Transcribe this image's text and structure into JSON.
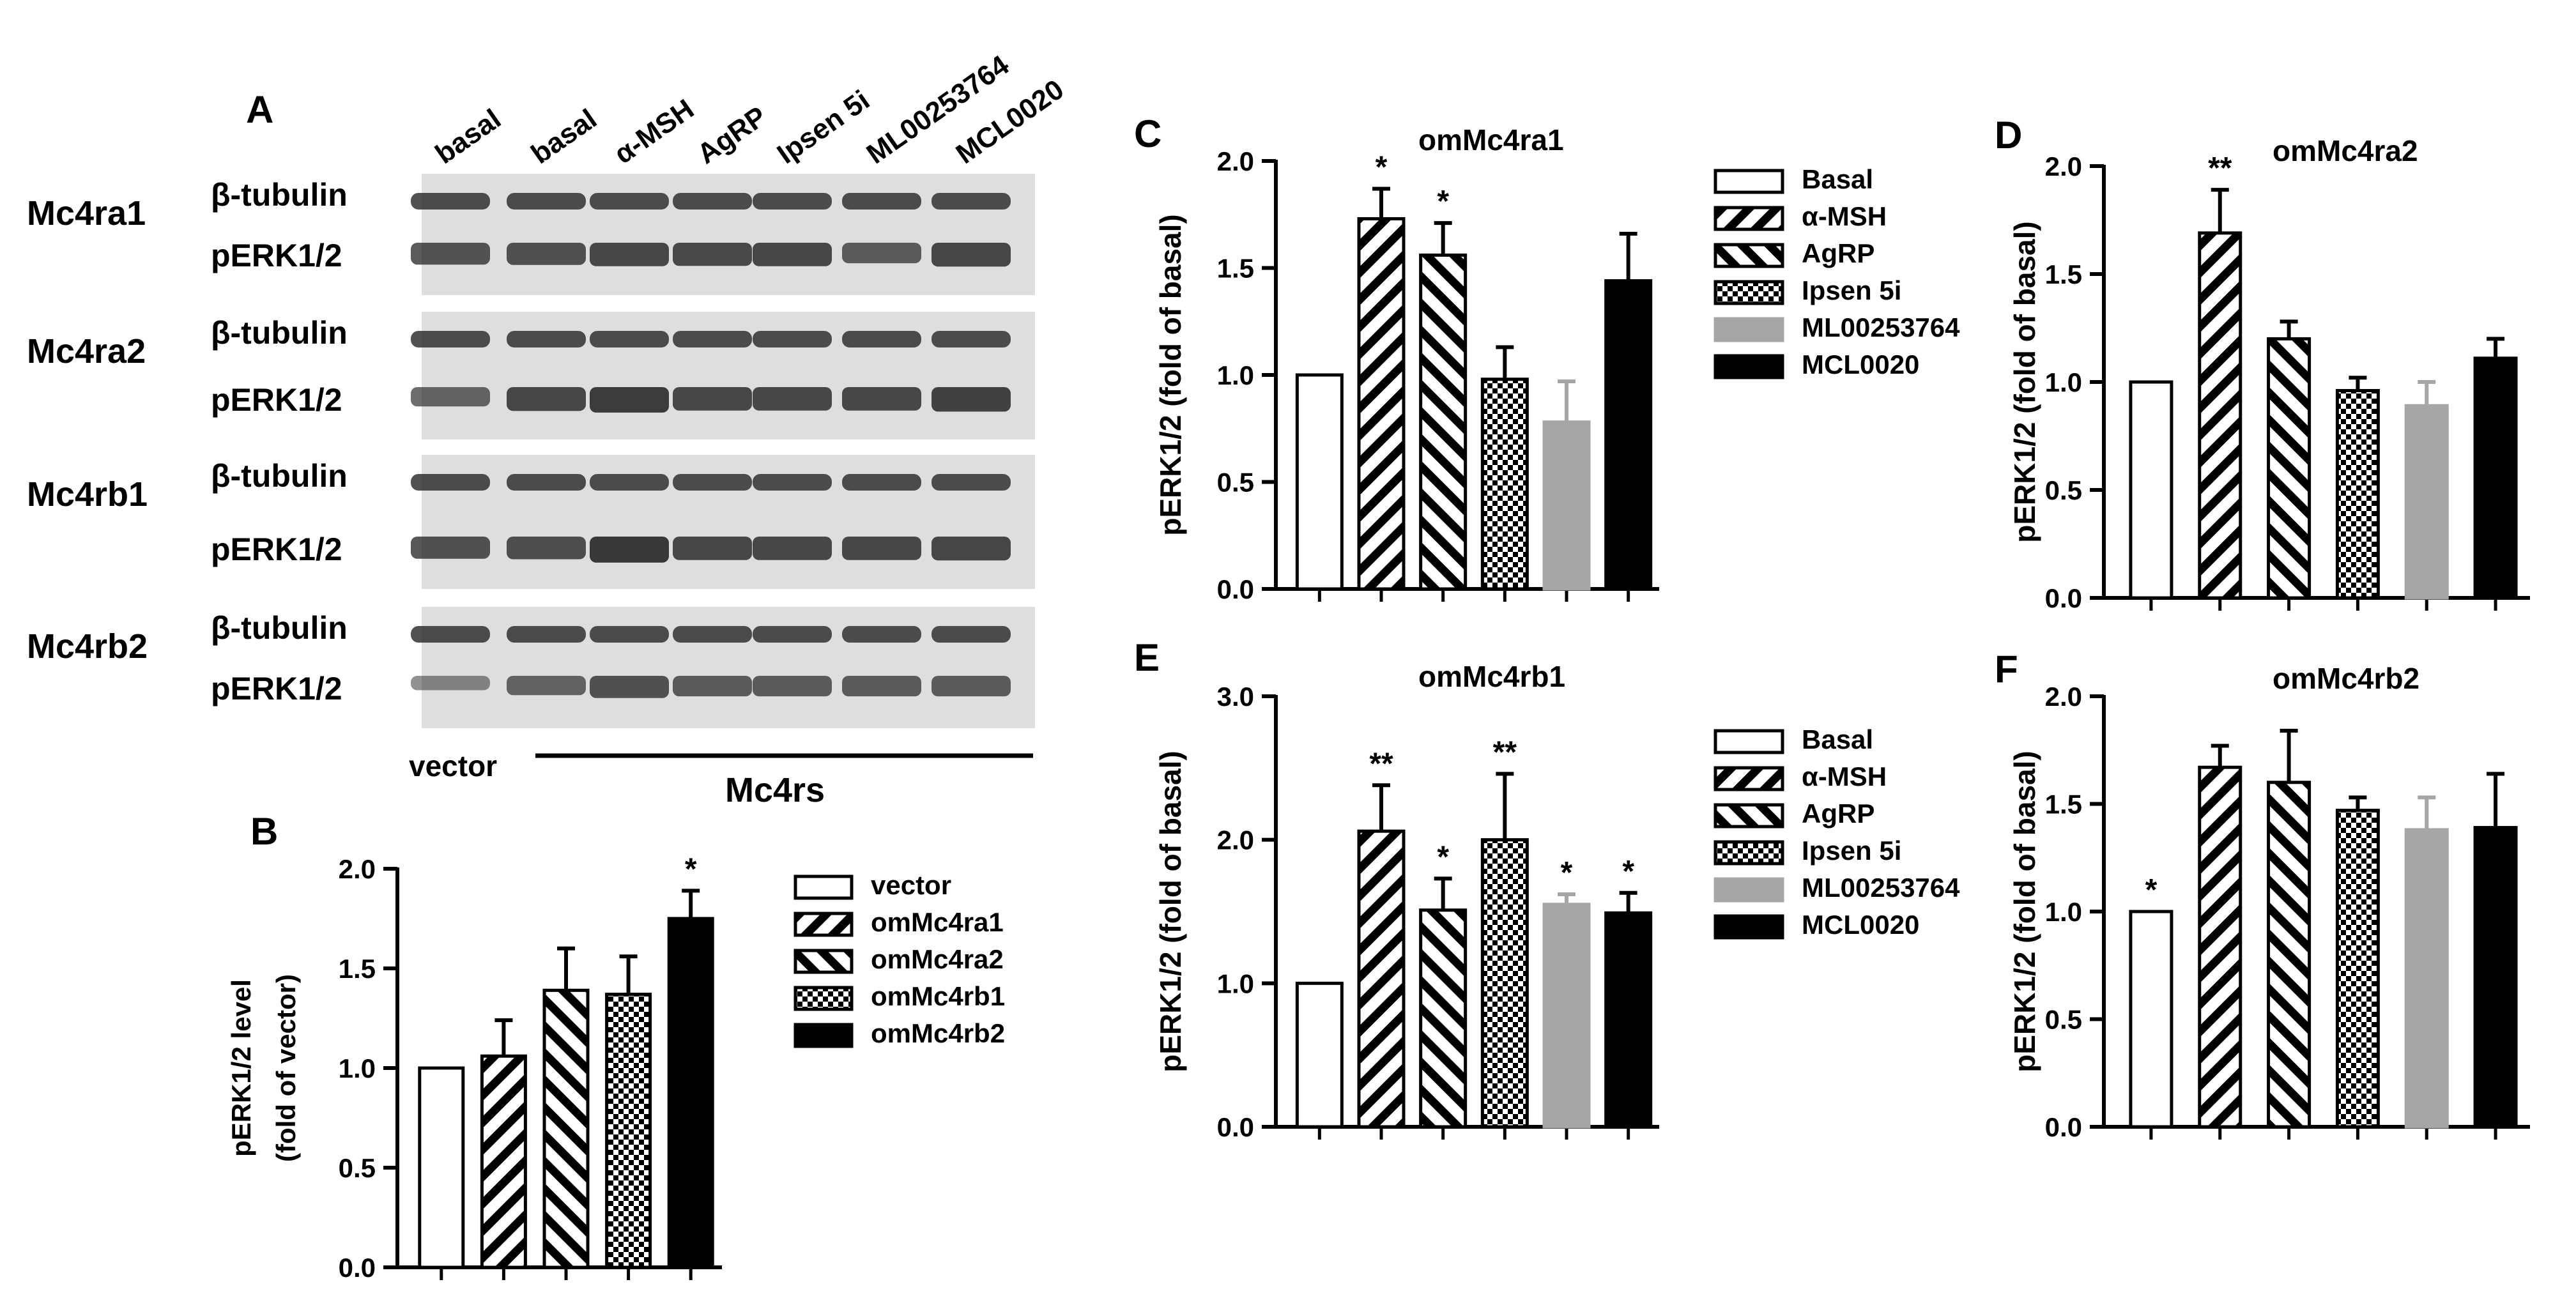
{
  "blot": {
    "panel_letter": "A",
    "lane_labels": [
      "basal",
      "basal",
      "α-MSH",
      "AgRP",
      "Ipsen 5i",
      "ML00253764",
      "MCL0020"
    ],
    "groups": [
      {
        "name": "Mc4ra1",
        "top_label": "β-tubulin",
        "bottom_label": "pERK1/2",
        "pERK_intensity": [
          0.7,
          0.72,
          0.8,
          0.78,
          0.8,
          0.62,
          0.82
        ]
      },
      {
        "name": "Mc4ra2",
        "top_label": "β-tubulin",
        "bottom_label": "pERK1/2",
        "pERK_intensity": [
          0.55,
          0.82,
          0.92,
          0.8,
          0.8,
          0.8,
          0.86
        ]
      },
      {
        "name": "Mc4rb1",
        "top_label": "β-tubulin",
        "bottom_label": "pERK1/2",
        "pERK_intensity": [
          0.72,
          0.75,
          0.95,
          0.8,
          0.8,
          0.8,
          0.82
        ]
      },
      {
        "name": "Mc4rb2",
        "top_label": "β-tubulin",
        "bottom_label": "pERK1/2",
        "pERK_intensity": [
          0.25,
          0.55,
          0.72,
          0.62,
          0.62,
          0.62,
          0.62
        ]
      }
    ],
    "vector_label": "vector",
    "mc4rs_label": "Mc4rs"
  },
  "chart_data": [
    {
      "panel": "B",
      "type": "bar",
      "title": "",
      "ylabel_lines": [
        "pERK1/2 level",
        "(fold of vector)"
      ],
      "ylim": [
        0,
        2.0
      ],
      "yticks": [
        "0.0",
        "0.5",
        "1.0",
        "1.5",
        "2.0"
      ],
      "categories": [
        "vector",
        "omMc4ra1",
        "omMc4ra2",
        "omMc4rb1",
        "omMc4rb2"
      ],
      "values": [
        1.0,
        1.06,
        1.39,
        1.37,
        1.75
      ],
      "errors": [
        0,
        0.18,
        0.21,
        0.19,
        0.14
      ],
      "significance": [
        "",
        "",
        "",
        "",
        "*"
      ],
      "patterns": [
        "white",
        "diag-right",
        "diag-left",
        "checker",
        "black"
      ],
      "legend": [
        "vector",
        "omMc4ra1",
        "omMc4ra2",
        "omMc4rb1",
        "omMc4rb2"
      ]
    },
    {
      "panel": "C",
      "type": "bar",
      "title": "omMc4ra1",
      "ylabel": "pERK1/2 (fold of basal)",
      "ylim": [
        0,
        2.0
      ],
      "yticks": [
        "0.0",
        "0.5",
        "1.0",
        "1.5",
        "2.0"
      ],
      "categories": [
        "Basal",
        "α-MSH",
        "AgRP",
        "Ipsen 5i",
        "ML00253764",
        "MCL0020"
      ],
      "values": [
        1.0,
        1.73,
        1.56,
        0.98,
        0.78,
        1.44
      ],
      "errors": [
        0,
        0.14,
        0.15,
        0.15,
        0.19,
        0.22
      ],
      "significance": [
        "",
        "*",
        "*",
        "",
        "",
        ""
      ],
      "patterns": [
        "white",
        "diag-right",
        "diag-left",
        "checker",
        "gray",
        "black"
      ],
      "legend": [
        "Basal",
        "α-MSH",
        "AgRP",
        "Ipsen 5i",
        "ML00253764",
        "MCL0020"
      ]
    },
    {
      "panel": "D",
      "type": "bar",
      "title": "omMc4ra2",
      "ylabel": "pERK1/2 (fold of basal)",
      "ylim": [
        0,
        2.0
      ],
      "yticks": [
        "0.0",
        "0.5",
        "1.0",
        "1.5",
        "2.0"
      ],
      "categories": [
        "Basal",
        "α-MSH",
        "AgRP",
        "Ipsen 5i",
        "ML00253764",
        "MCL0020"
      ],
      "values": [
        1.0,
        1.69,
        1.2,
        0.96,
        0.89,
        1.11
      ],
      "errors": [
        0,
        0.2,
        0.08,
        0.06,
        0.11,
        0.09
      ],
      "significance": [
        "",
        "**",
        "",
        "",
        "",
        ""
      ],
      "patterns": [
        "white",
        "diag-right",
        "diag-left",
        "checker",
        "gray",
        "black"
      ]
    },
    {
      "panel": "E",
      "type": "bar",
      "title": "omMc4rb1",
      "ylabel": "pERK1/2 (fold of basal)",
      "ylim": [
        0,
        3.0
      ],
      "yticks": [
        "0.0",
        "1.0",
        "2.0",
        "3.0"
      ],
      "categories": [
        "Basal",
        "α-MSH",
        "AgRP",
        "Ipsen 5i",
        "ML00253764",
        "MCL0020"
      ],
      "values": [
        1.0,
        2.06,
        1.51,
        2.0,
        1.55,
        1.49
      ],
      "errors": [
        0,
        0.32,
        0.22,
        0.46,
        0.07,
        0.14
      ],
      "significance": [
        "",
        "**",
        "*",
        "**",
        "*",
        "*"
      ],
      "patterns": [
        "white",
        "diag-right",
        "diag-left",
        "checker",
        "gray",
        "black"
      ],
      "legend": [
        "Basal",
        "α-MSH",
        "AgRP",
        "Ipsen 5i",
        "ML00253764",
        "MCL0020"
      ]
    },
    {
      "panel": "F",
      "type": "bar",
      "title": "omMc4rb2",
      "ylabel": "pERK1/2 (fold of basal)",
      "ylim": [
        0,
        2.0
      ],
      "yticks": [
        "0.0",
        "0.5",
        "1.0",
        "1.5",
        "2.0"
      ],
      "categories": [
        "Basal",
        "α-MSH",
        "AgRP",
        "Ipsen 5i",
        "ML00253764",
        "MCL0020"
      ],
      "values": [
        1.0,
        1.67,
        1.6,
        1.47,
        1.38,
        1.39
      ],
      "errors": [
        0,
        0.1,
        0.24,
        0.06,
        0.15,
        0.25
      ],
      "significance": [
        "*",
        "",
        "",
        "",
        "",
        ""
      ],
      "patterns": [
        "white",
        "diag-right",
        "diag-left",
        "checker",
        "gray",
        "black"
      ]
    }
  ]
}
